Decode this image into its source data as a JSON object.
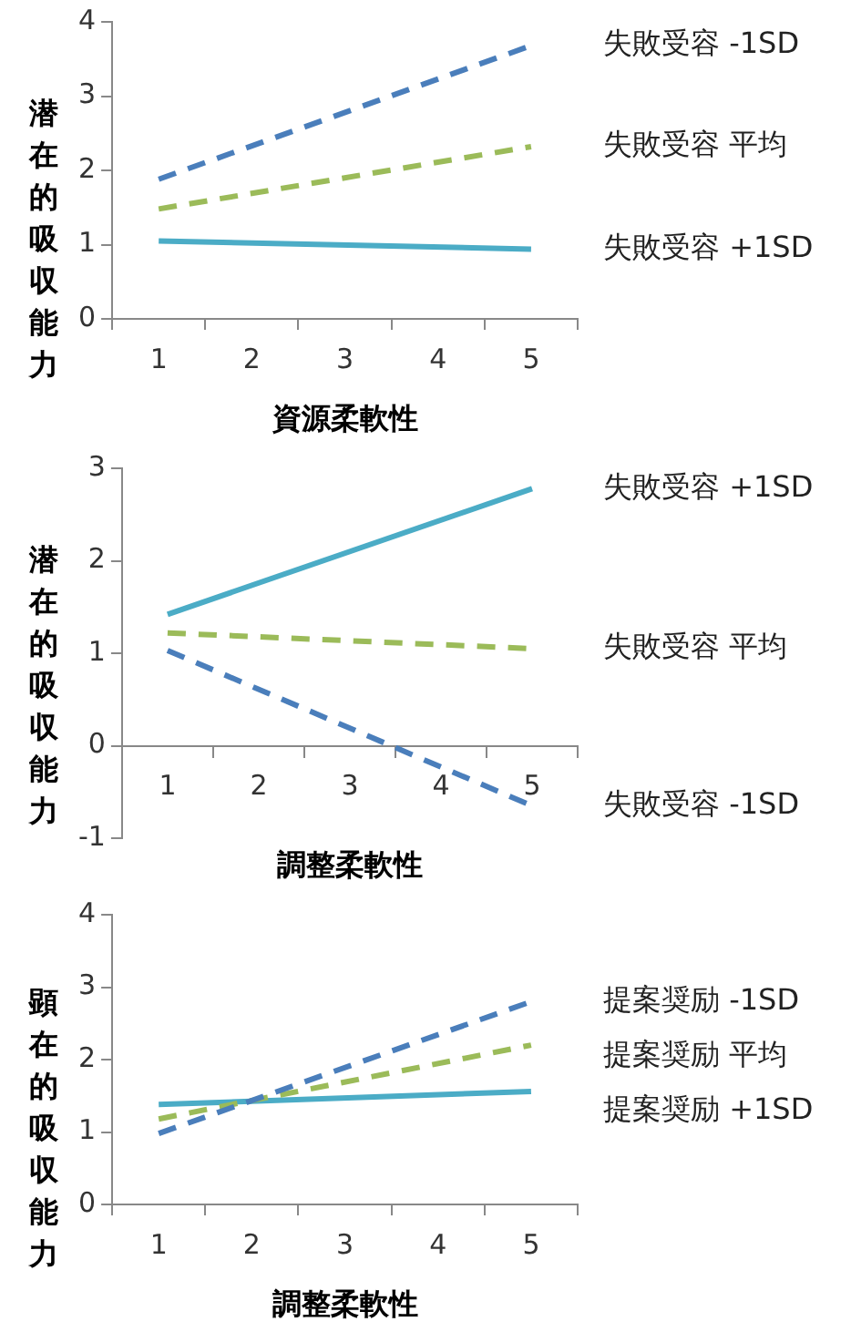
{
  "chart_data": [
    {
      "type": "line",
      "xlabel": "資源柔軟性",
      "ylabel": "潜在的吸収能力",
      "categories": [
        "1",
        "2",
        "3",
        "4",
        "5"
      ],
      "ylim": [
        0,
        4
      ],
      "yticks": [
        0,
        1,
        2,
        3,
        4
      ],
      "grid": false,
      "series": [
        {
          "name": "失敗受容 -1SD",
          "color": "#4a7ebb",
          "line_style": "dashed",
          "values": [
            1.88,
            null,
            null,
            null,
            3.68
          ]
        },
        {
          "name": "失敗受容 平均",
          "color": "#9bbb59",
          "line_style": "dashed",
          "values": [
            1.48,
            null,
            null,
            null,
            2.32
          ]
        },
        {
          "name": "失敗受容 +1SD",
          "color": "#4bacc6",
          "line_style": "solid",
          "values": [
            1.05,
            null,
            null,
            null,
            0.94
          ]
        }
      ]
    },
    {
      "type": "line",
      "xlabel": "調整柔軟性",
      "ylabel": "潜在的吸収能力",
      "categories": [
        "1",
        "2",
        "3",
        "4",
        "5"
      ],
      "ylim": [
        -1,
        3
      ],
      "yticks": [
        -1,
        0,
        1,
        2,
        3
      ],
      "grid": false,
      "series": [
        {
          "name": "失敗受容 +1SD",
          "color": "#4bacc6",
          "line_style": "solid",
          "values": [
            1.42,
            null,
            null,
            null,
            2.78
          ]
        },
        {
          "name": "失敗受容 平均",
          "color": "#9bbb59",
          "line_style": "dashed",
          "values": [
            1.22,
            null,
            null,
            null,
            1.05
          ]
        },
        {
          "name": "失敗受容 -1SD",
          "color": "#4a7ebb",
          "line_style": "dashed",
          "values": [
            1.03,
            null,
            null,
            null,
            -0.65
          ]
        }
      ]
    },
    {
      "type": "line",
      "xlabel": "調整柔軟性",
      "ylabel": "顕在的吸収能力",
      "categories": [
        "1",
        "2",
        "3",
        "4",
        "5"
      ],
      "ylim": [
        0,
        4
      ],
      "yticks": [
        0,
        1,
        2,
        3,
        4
      ],
      "grid": false,
      "series": [
        {
          "name": "提案奨励 -1SD",
          "color": "#4a7ebb",
          "line_style": "dashed",
          "values": [
            0.98,
            null,
            null,
            null,
            2.8
          ]
        },
        {
          "name": "提案奨励 平均",
          "color": "#9bbb59",
          "line_style": "dashed",
          "values": [
            1.18,
            null,
            null,
            null,
            2.2
          ]
        },
        {
          "name": "提案奨励 +1SD",
          "color": "#4bacc6",
          "line_style": "solid",
          "values": [
            1.38,
            null,
            null,
            null,
            1.56
          ]
        }
      ]
    }
  ]
}
